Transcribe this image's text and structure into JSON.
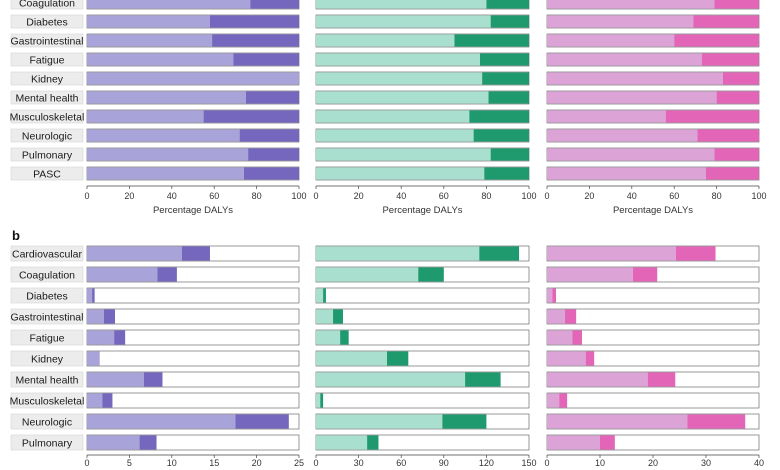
{
  "panel_b_letter": "b",
  "categories_a": [
    "Coagulation",
    "Diabetes",
    "Gastrointestinal",
    "Fatigue",
    "Kidney",
    "Mental health",
    "Musculoskeletal",
    "Neurologic",
    "Pulmonary",
    "PASC"
  ],
  "categories_b": [
    "Cardiovascular",
    "Coagulation",
    "Diabetes",
    "Gastrointestinal",
    "Fatigue",
    "Kidney",
    "Mental health",
    "Musculoskeletal",
    "Neurologic",
    "Pulmonary"
  ],
  "colors": {
    "purple_light": "#a8a3d8",
    "purple_dark": "#7567be",
    "green_light": "#a8dfcf",
    "green_dark": "#1f9a6e",
    "pink_light": "#dba3d6",
    "pink_dark": "#e265b7"
  },
  "chart_data": [
    {
      "panel": "a",
      "column": 1,
      "type": "bar",
      "orientation": "horizontal",
      "stacked": true,
      "xlabel": "Percentage DALYs",
      "xlim": [
        0,
        100
      ],
      "xticks": [
        0,
        20,
        40,
        60,
        80,
        100
      ],
      "categories": [
        "Coagulation",
        "Diabetes",
        "Gastrointestinal",
        "Fatigue",
        "Kidney",
        "Mental health",
        "Musculoskeletal",
        "Neurologic",
        "Pulmonary",
        "PASC"
      ],
      "series": [
        {
          "values": [
            77,
            58,
            59,
            69,
            100,
            75,
            55,
            72,
            76,
            74
          ],
          "color": "#a8a3d8"
        },
        {
          "values": [
            23,
            42,
            41,
            31,
            0,
            25,
            45,
            28,
            24,
            26
          ],
          "color": "#7567be"
        }
      ]
    },
    {
      "panel": "a",
      "column": 2,
      "type": "bar",
      "orientation": "horizontal",
      "stacked": true,
      "xlabel": "Percentage DALYs",
      "xlim": [
        0,
        100
      ],
      "xticks": [
        0,
        20,
        40,
        60,
        80,
        100
      ],
      "categories": [
        "Coagulation",
        "Diabetes",
        "Gastrointestinal",
        "Fatigue",
        "Kidney",
        "Mental health",
        "Musculoskeletal",
        "Neurologic",
        "Pulmonary",
        "PASC"
      ],
      "series": [
        {
          "values": [
            80,
            82,
            65,
            77,
            78,
            81,
            72,
            74,
            82,
            79
          ],
          "color": "#a8dfcf"
        },
        {
          "values": [
            20,
            18,
            35,
            23,
            22,
            19,
            28,
            26,
            18,
            21
          ],
          "color": "#1f9a6e"
        }
      ]
    },
    {
      "panel": "a",
      "column": 3,
      "type": "bar",
      "orientation": "horizontal",
      "stacked": true,
      "xlabel": "Percentage DALYs",
      "xlim": [
        0,
        100
      ],
      "xticks": [
        0,
        20,
        40,
        60,
        80,
        100
      ],
      "categories": [
        "Coagulation",
        "Diabetes",
        "Gastrointestinal",
        "Fatigue",
        "Kidney",
        "Mental health",
        "Musculoskeletal",
        "Neurologic",
        "Pulmonary",
        "PASC"
      ],
      "series": [
        {
          "values": [
            79,
            69,
            60,
            73,
            83,
            80,
            56,
            71,
            79,
            75
          ],
          "color": "#dba3d6"
        },
        {
          "values": [
            21,
            31,
            40,
            27,
            17,
            20,
            44,
            29,
            21,
            25
          ],
          "color": "#e265b7"
        }
      ]
    },
    {
      "panel": "b",
      "column": 1,
      "type": "bar",
      "orientation": "horizontal",
      "stacked": true,
      "xlabel": "",
      "xlim": [
        0,
        25
      ],
      "xticks": [
        0,
        5,
        10,
        15,
        20,
        25
      ],
      "categories": [
        "Cardiovascular",
        "Coagulation",
        "Diabetes",
        "Gastrointestinal",
        "Fatigue",
        "Kidney",
        "Mental health",
        "Musculoskeletal",
        "Neurologic",
        "Pulmonary"
      ],
      "series": [
        {
          "values": [
            11.2,
            8.3,
            0.6,
            2.0,
            3.2,
            1.5,
            6.7,
            1.8,
            17.5,
            6.2
          ],
          "color": "#a8a3d8"
        },
        {
          "values": [
            3.3,
            2.3,
            0.3,
            1.3,
            1.3,
            0.0,
            2.2,
            1.2,
            6.3,
            2.0
          ],
          "color": "#7567be"
        }
      ]
    },
    {
      "panel": "b",
      "column": 2,
      "type": "bar",
      "orientation": "horizontal",
      "stacked": true,
      "xlabel": "",
      "xlim": [
        0,
        150
      ],
      "xticks": [
        0,
        30,
        60,
        90,
        120,
        150
      ],
      "categories": [
        "Cardiovascular",
        "Coagulation",
        "Diabetes",
        "Gastrointestinal",
        "Fatigue",
        "Kidney",
        "Mental health",
        "Musculoskeletal",
        "Neurologic",
        "Pulmonary"
      ],
      "series": [
        {
          "values": [
            115,
            72,
            5,
            12,
            17,
            50,
            105,
            3,
            89,
            36
          ],
          "color": "#a8dfcf"
        },
        {
          "values": [
            28,
            18,
            2,
            7,
            6,
            15,
            25,
            2,
            31,
            8
          ],
          "color": "#1f9a6e"
        }
      ]
    },
    {
      "panel": "b",
      "column": 3,
      "type": "bar",
      "orientation": "horizontal",
      "stacked": true,
      "xlabel": "",
      "xlim": [
        0,
        40
      ],
      "xticks": [
        0,
        10,
        20,
        30,
        40
      ],
      "categories": [
        "Cardiovascular",
        "Coagulation",
        "Diabetes",
        "Gastrointestinal",
        "Fatigue",
        "Kidney",
        "Mental health",
        "Musculoskeletal",
        "Neurologic",
        "Pulmonary"
      ],
      "series": [
        {
          "values": [
            24.3,
            16.2,
            1.0,
            3.4,
            4.8,
            7.3,
            19.0,
            2.3,
            26.5,
            10.0
          ],
          "color": "#dba3d6"
        },
        {
          "values": [
            7.5,
            4.6,
            0.7,
            2.1,
            1.8,
            1.6,
            5.2,
            1.5,
            10.9,
            2.8
          ],
          "color": "#e265b7"
        }
      ]
    }
  ]
}
